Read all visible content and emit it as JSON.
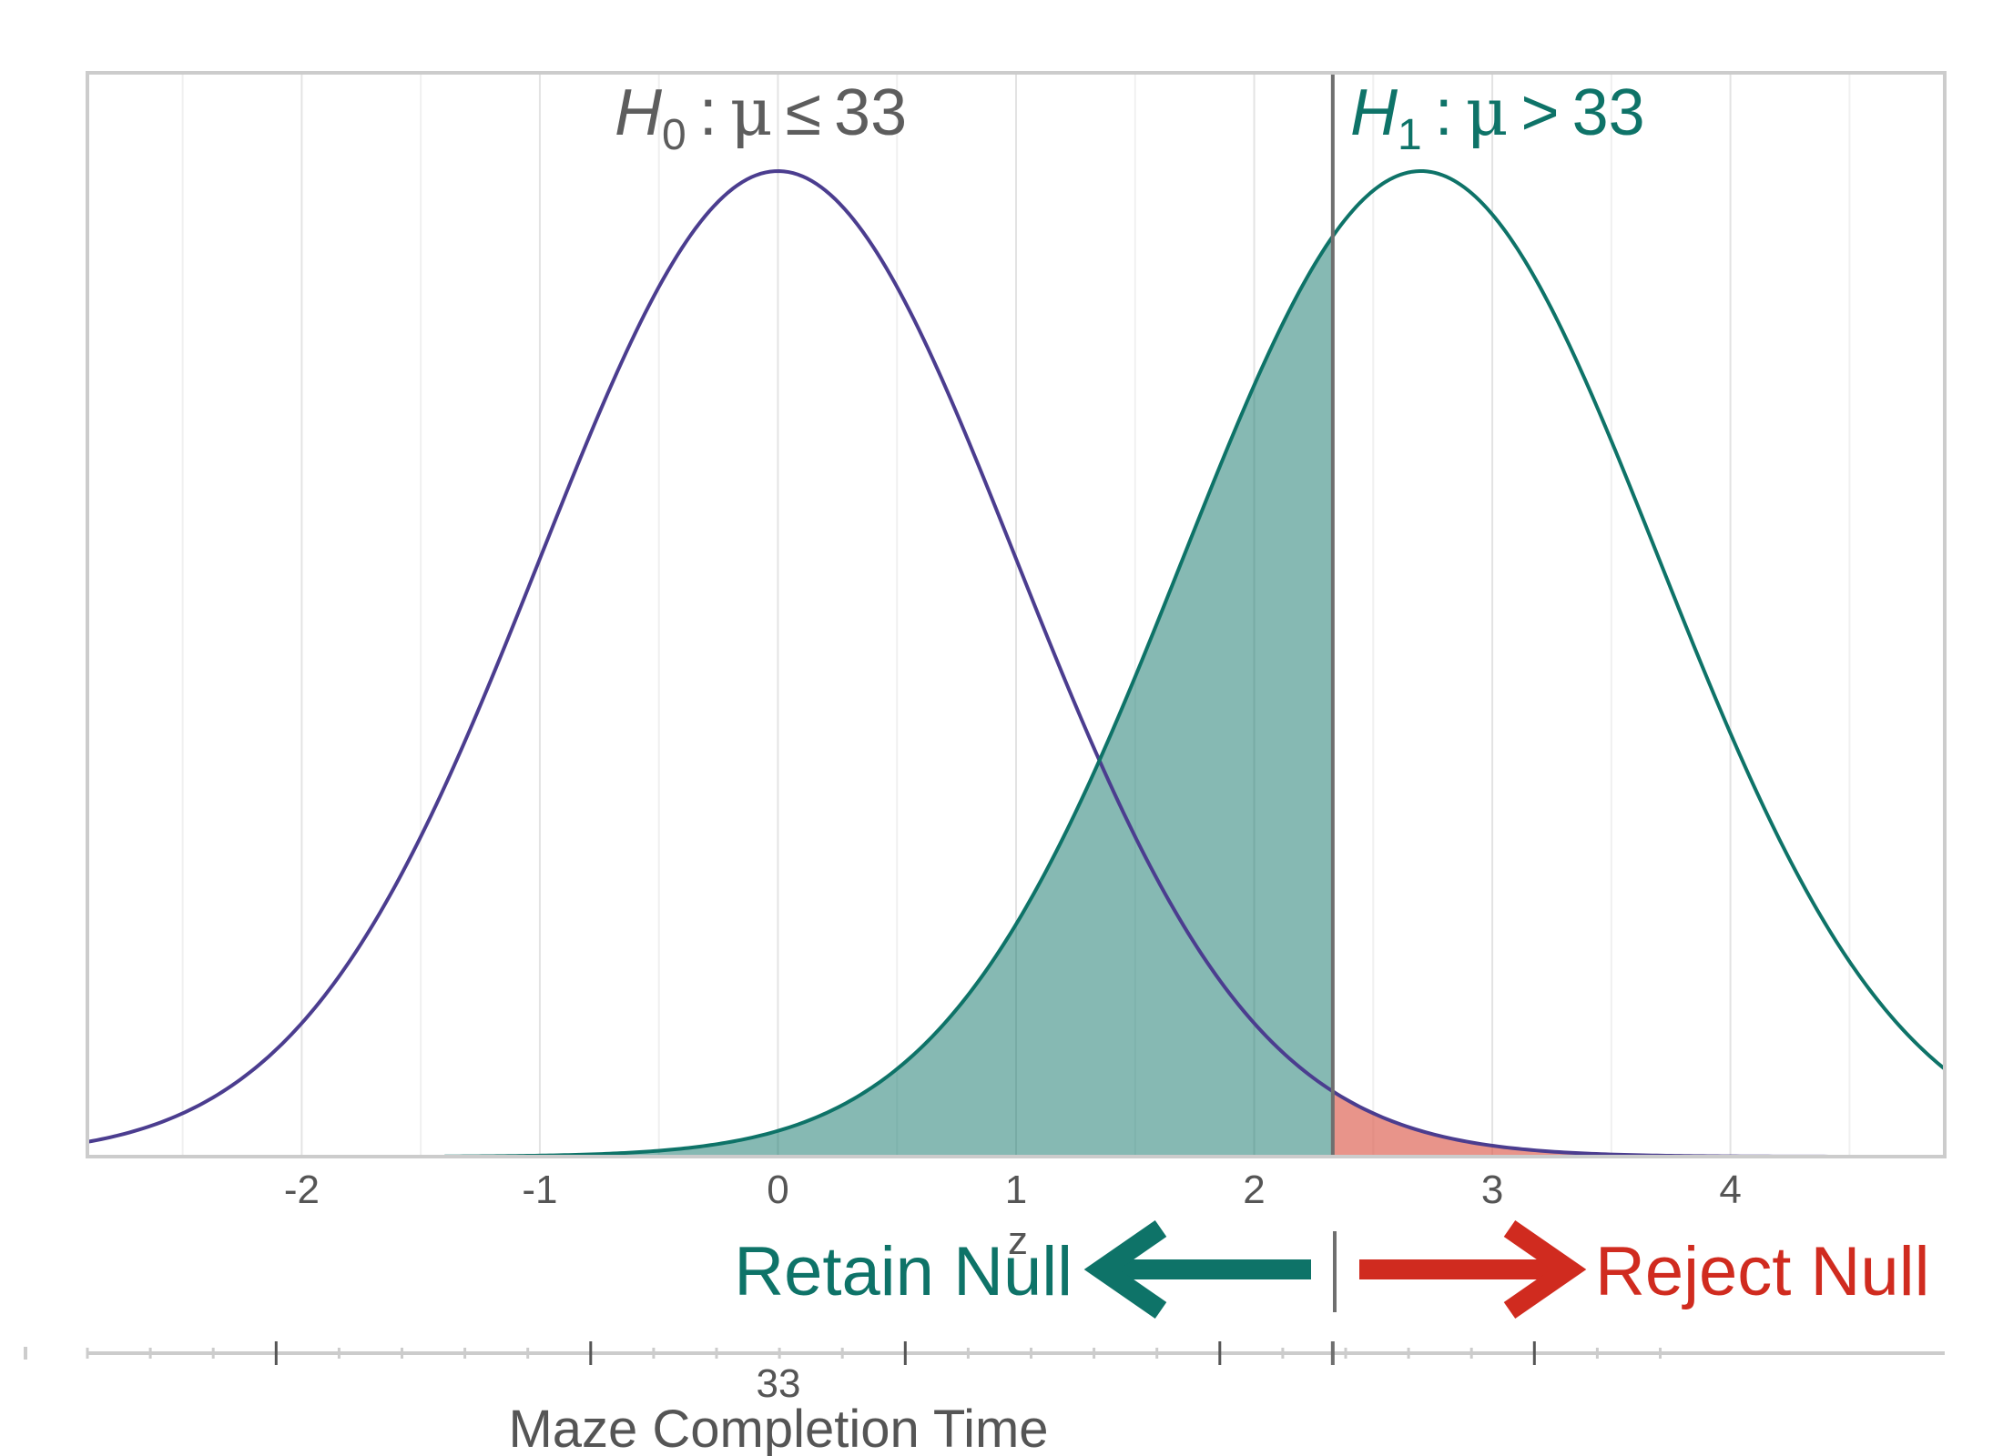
{
  "chart_data": {
    "type": "area",
    "xlabel": "z",
    "x_ticks": [
      -2,
      -1,
      0,
      1,
      2,
      3,
      4
    ],
    "xlim": [
      -2.9,
      4.9
    ],
    "critical_value": 2.33,
    "series": [
      {
        "mean": 0,
        "sd": 1,
        "color": "#4b3d8f"
      },
      {
        "mean": 2.7,
        "sd": 1,
        "color": "#0e7368"
      }
    ],
    "shaded_regions": [
      {
        "from": -1.4,
        "to": 2.33,
        "under": "H1",
        "color": "#0e7368",
        "opacity": 0.5
      },
      {
        "from": 2.33,
        "to": 4.1,
        "under": "H0",
        "color": "#dc5a4b",
        "opacity": 0.65
      }
    ],
    "grid": true,
    "annotations": {
      "h0": {
        "sym": "H",
        "sub": "0",
        "colon": ":",
        "mu": "μ",
        "op": "≤",
        "val": "33",
        "color": "#5d5d5d"
      },
      "h1": {
        "sym": "H",
        "sub": "1",
        "colon": ":",
        "mu": "μ",
        "op": ">",
        "val": "33",
        "color": "#0e7368"
      },
      "retain": {
        "text": "Retain Null",
        "color": "#0e7368"
      },
      "reject": {
        "text": "Reject Null",
        "color": "#d02b1f"
      }
    },
    "secondary_axis": {
      "title": "Maze Completion Time",
      "tick_label": "33"
    }
  }
}
